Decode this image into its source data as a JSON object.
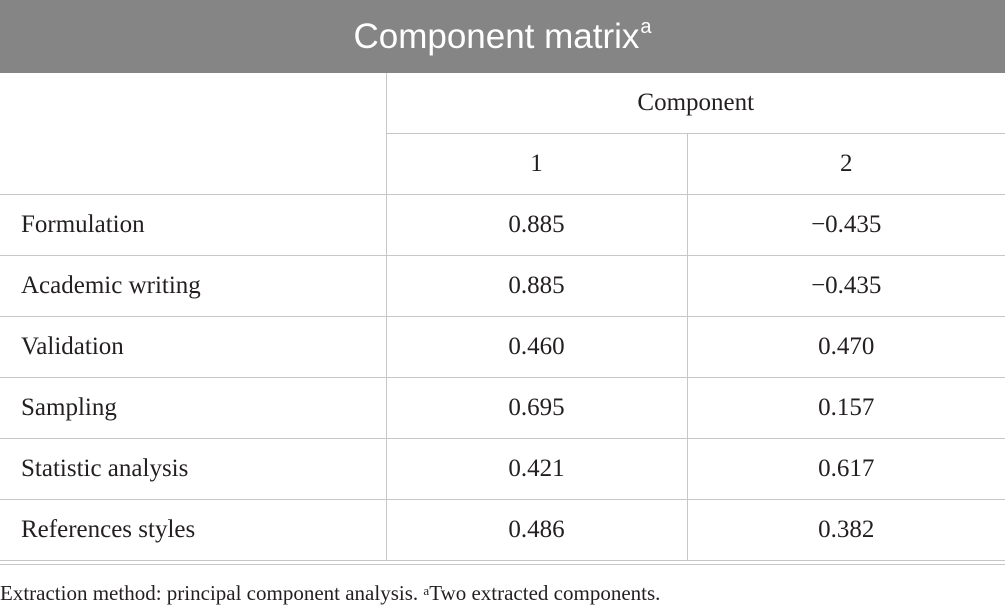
{
  "title": {
    "text": "Component matrix",
    "superscript": "a"
  },
  "table": {
    "group_header": "Component",
    "columns": [
      "1",
      "2"
    ],
    "rows": [
      {
        "label": "Formulation",
        "values": [
          "0.885",
          "−0.435"
        ]
      },
      {
        "label": "Academic writing",
        "values": [
          "0.885",
          "−0.435"
        ]
      },
      {
        "label": "Validation",
        "values": [
          "0.460",
          "0.470"
        ]
      },
      {
        "label": "Sampling",
        "values": [
          "0.695",
          "0.157"
        ]
      },
      {
        "label": "Statistic analysis",
        "values": [
          "0.421",
          "0.617"
        ]
      },
      {
        "label": "References styles",
        "values": [
          "0.486",
          "0.382"
        ]
      }
    ]
  },
  "footnote": {
    "method": "Extraction method: principal component analysis.",
    "marker": "a",
    "note": "Two extracted components."
  }
}
